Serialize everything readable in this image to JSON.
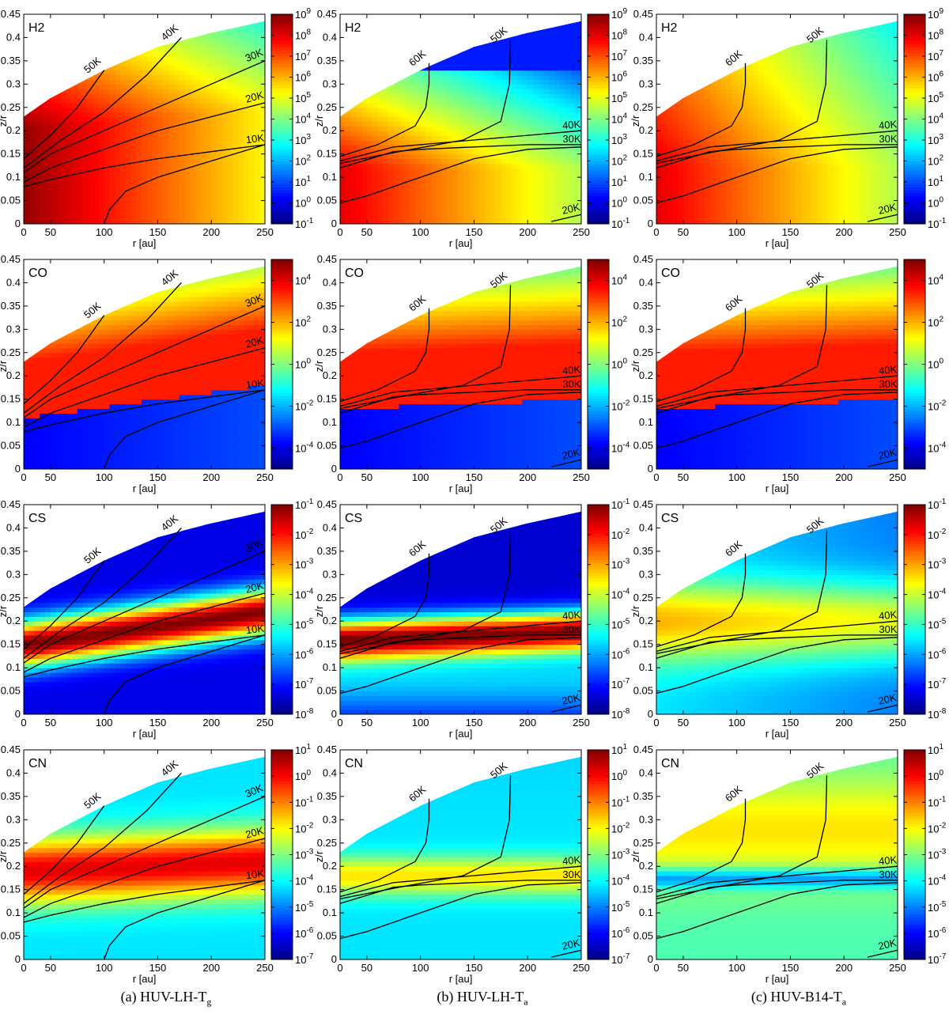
{
  "figure": {
    "captions": [
      {
        "prefix": "(a) HUV-LH-T",
        "sub": "g"
      },
      {
        "prefix": "(b) HUV-LH-T",
        "sub": "a"
      },
      {
        "prefix": "(c) HUV-B14-T",
        "sub": "a"
      }
    ]
  },
  "colors": {
    "colormap": [
      "#000080",
      "#0000ff",
      "#0080ff",
      "#00ffff",
      "#80ff80",
      "#ffff00",
      "#ff8000",
      "#ff0000",
      "#800000"
    ],
    "contour": "#000000"
  },
  "chart_data": {
    "type": "heatmap",
    "grid": "4x3",
    "xlabel": "r [au]",
    "ylabel": "z/r",
    "xlim": [
      25,
      250
    ],
    "ylim": [
      0,
      0.45
    ],
    "xticks": [
      0,
      50,
      100,
      150,
      200,
      250
    ],
    "yticks": [
      0,
      0.05,
      0.1,
      0.15,
      0.2,
      0.25,
      0.3,
      0.35,
      0.4,
      0.45
    ],
    "rows": [
      {
        "species": "H2",
        "colorbar": {
          "min_exp": -1,
          "max_exp": 9,
          "tick_exps": [
            -1,
            0,
            1,
            2,
            3,
            4,
            5,
            6,
            7,
            8,
            9
          ]
        }
      },
      {
        "species": "CO",
        "colorbar": {
          "min_exp": -5,
          "max_exp": 5,
          "tick_exps": [
            -4,
            -2,
            0,
            2,
            4
          ]
        }
      },
      {
        "species": "CS",
        "colorbar": {
          "min_exp": -8,
          "max_exp": -1,
          "tick_exps": [
            -8,
            -7,
            -6,
            -5,
            -4,
            -3,
            -2,
            -1
          ]
        }
      },
      {
        "species": "CN",
        "colorbar": {
          "min_exp": -7,
          "max_exp": 1,
          "tick_exps": [
            -7,
            -6,
            -5,
            -4,
            -3,
            -2,
            -1,
            0,
            1
          ]
        }
      }
    ],
    "disk_surface": {
      "r": [
        25,
        50,
        100,
        150,
        200,
        250
      ],
      "z_over_r": [
        0.23,
        0.27,
        0.33,
        0.38,
        0.41,
        0.435
      ]
    },
    "columns": [
      {
        "model": "HUV-LH-Tg",
        "contours": [
          {
            "label": "50K",
            "r": [
              25,
              50,
              75,
              100
            ],
            "z_over_r": [
              0.14,
              0.19,
              0.25,
              0.33
            ]
          },
          {
            "label": "40K",
            "r": [
              25,
              60,
              100,
              140,
              172
            ],
            "z_over_r": [
              0.12,
              0.18,
              0.24,
              0.32,
              0.4
            ]
          },
          {
            "label": "30K",
            "r": [
              25,
              50,
              100,
              150,
              200,
              250
            ],
            "z_over_r": [
              0.11,
              0.15,
              0.2,
              0.25,
              0.3,
              0.35
            ]
          },
          {
            "label": "20K",
            "r": [
              25,
              50,
              100,
              150,
              200,
              250
            ],
            "z_over_r": [
              0.09,
              0.12,
              0.16,
              0.2,
              0.23,
              0.26
            ]
          },
          {
            "label": "10K",
            "r": [
              25,
              50,
              100,
              150,
              200,
              250
            ],
            "z_over_r": [
              0.08,
              0.095,
              0.12,
              0.14,
              0.155,
              0.17
            ]
          },
          {
            "label": "",
            "r": [
              100,
              105,
              120,
              150,
              200,
              250
            ],
            "z_over_r": [
              0.0,
              0.03,
              0.07,
              0.1,
              0.135,
              0.17
            ]
          }
        ]
      },
      {
        "model": "HUV-LH-Ta",
        "contours": [
          {
            "label": "60K",
            "r": [
              25,
              60,
              95,
              105,
              108,
              108
            ],
            "z_over_r": [
              0.145,
              0.17,
              0.21,
              0.25,
              0.3,
              0.345
            ]
          },
          {
            "label": "50K",
            "r": [
              25,
              80,
              140,
              175,
              183,
              184
            ],
            "z_over_r": [
              0.13,
              0.155,
              0.18,
              0.22,
              0.3,
              0.395
            ]
          },
          {
            "label": "40K",
            "r": [
              25,
              75,
              100,
              150,
              200,
              250
            ],
            "z_over_r": [
              0.135,
              0.165,
              0.17,
              0.18,
              0.19,
              0.2
            ]
          },
          {
            "label": "30K",
            "r": [
              25,
              75,
              100,
              150,
              200,
              250
            ],
            "z_over_r": [
              0.12,
              0.155,
              0.16,
              0.165,
              0.17,
              0.17
            ]
          },
          {
            "label": "",
            "r": [
              25,
              50,
              100,
              150,
              200,
              250
            ],
            "z_over_r": [
              0.045,
              0.06,
              0.1,
              0.14,
              0.16,
              0.165
            ]
          },
          {
            "label": "20K",
            "r": [
              222,
              250
            ],
            "z_over_r": [
              0.005,
              0.02
            ]
          }
        ]
      },
      {
        "model": "HUV-B14-Ta",
        "contours": [
          {
            "label": "60K",
            "r": [
              25,
              60,
              95,
              105,
              108,
              108
            ],
            "z_over_r": [
              0.145,
              0.17,
              0.21,
              0.25,
              0.3,
              0.345
            ]
          },
          {
            "label": "50K",
            "r": [
              25,
              80,
              140,
              175,
              183,
              184
            ],
            "z_over_r": [
              0.13,
              0.155,
              0.18,
              0.22,
              0.3,
              0.395
            ]
          },
          {
            "label": "40K",
            "r": [
              25,
              75,
              100,
              150,
              200,
              250
            ],
            "z_over_r": [
              0.135,
              0.165,
              0.17,
              0.18,
              0.19,
              0.2
            ]
          },
          {
            "label": "30K",
            "r": [
              25,
              75,
              100,
              150,
              200,
              250
            ],
            "z_over_r": [
              0.12,
              0.155,
              0.16,
              0.165,
              0.17,
              0.17
            ]
          },
          {
            "label": "",
            "r": [
              25,
              50,
              100,
              150,
              200,
              250
            ],
            "z_over_r": [
              0.045,
              0.06,
              0.1,
              0.14,
              0.16,
              0.165
            ]
          },
          {
            "label": "20K",
            "r": [
              222,
              250
            ],
            "z_over_r": [
              0.005,
              0.02
            ]
          }
        ]
      }
    ]
  }
}
